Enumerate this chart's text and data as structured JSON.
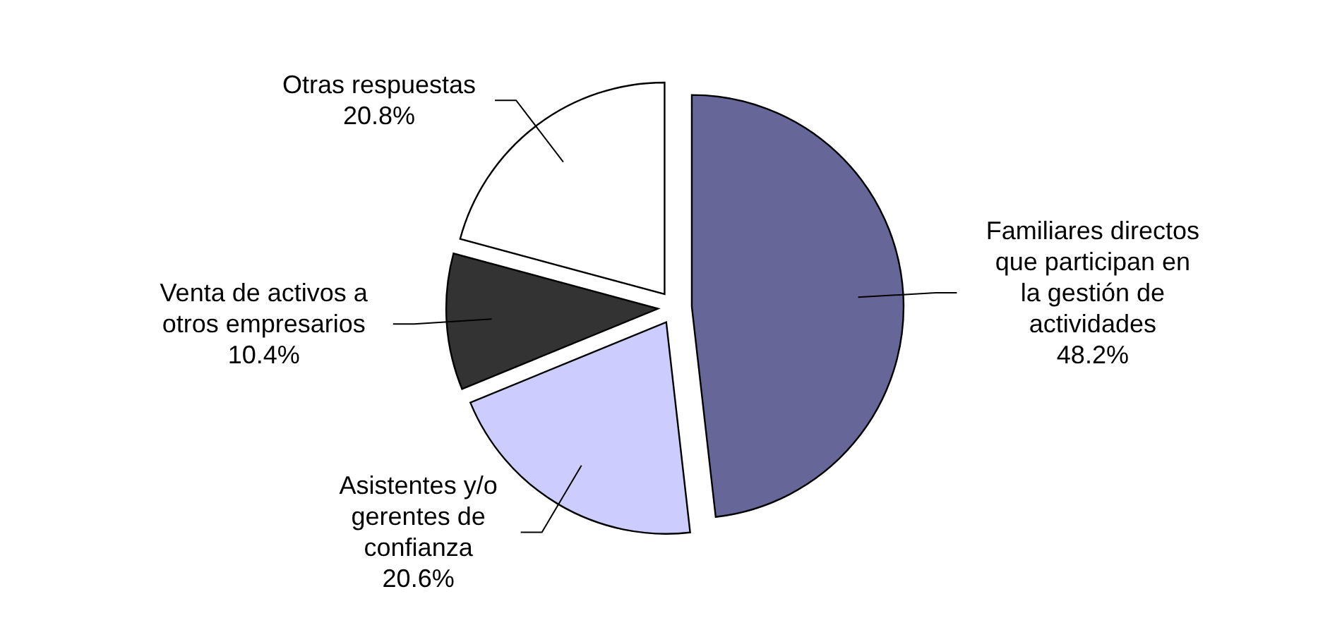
{
  "chart_data": {
    "type": "pie",
    "categories": [
      "Familiares directos que participan en la gestión de actividades",
      "Asistentes y/o gerentes de confianza",
      "Venta de activos a otros empresarios",
      "Otras respuestas"
    ],
    "values": [
      48.2,
      20.6,
      10.4,
      20.8
    ],
    "value_labels": [
      "48.2%",
      "20.6%",
      "10.4%",
      "20.8%"
    ],
    "colors": [
      "#666699",
      "#ccccff",
      "#333333",
      "#ffffff"
    ],
    "legend": false
  }
}
